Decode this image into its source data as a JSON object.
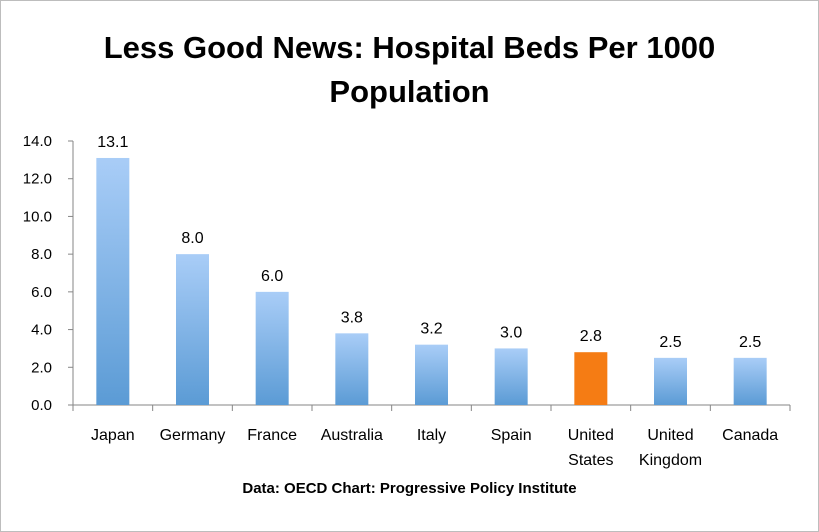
{
  "chart_data": {
    "type": "bar",
    "title_lines": [
      "Less Good News: Hospital Beds Per 1000",
      "Population"
    ],
    "categories": [
      [
        "Japan"
      ],
      [
        "Germany"
      ],
      [
        "France"
      ],
      [
        "Australia"
      ],
      [
        "Italy"
      ],
      [
        "Spain"
      ],
      [
        "United",
        "States"
      ],
      [
        "United",
        "Kingdom"
      ],
      [
        "Canada"
      ]
    ],
    "values": [
      13.1,
      8.0,
      6.0,
      3.8,
      3.2,
      3.0,
      2.8,
      2.5,
      2.5
    ],
    "data_labels": [
      "13.1",
      "8.0",
      "6.0",
      "3.8",
      "3.2",
      "3.0",
      "2.8",
      "2.5",
      "2.5"
    ],
    "ylim": [
      0,
      14
    ],
    "yticks": [
      "0.0",
      "2.0",
      "4.0",
      "6.0",
      "8.0",
      "10.0",
      "12.0",
      "14.0"
    ],
    "highlight_index": 6,
    "colors": {
      "bar": "#5b9bd5",
      "bar_light": "#a9cdf7",
      "highlight": "#f57c14",
      "axis": "#868686"
    },
    "grid": false,
    "legend": "none",
    "source": "Data: OECD  Chart: Progressive Policy Institute"
  }
}
